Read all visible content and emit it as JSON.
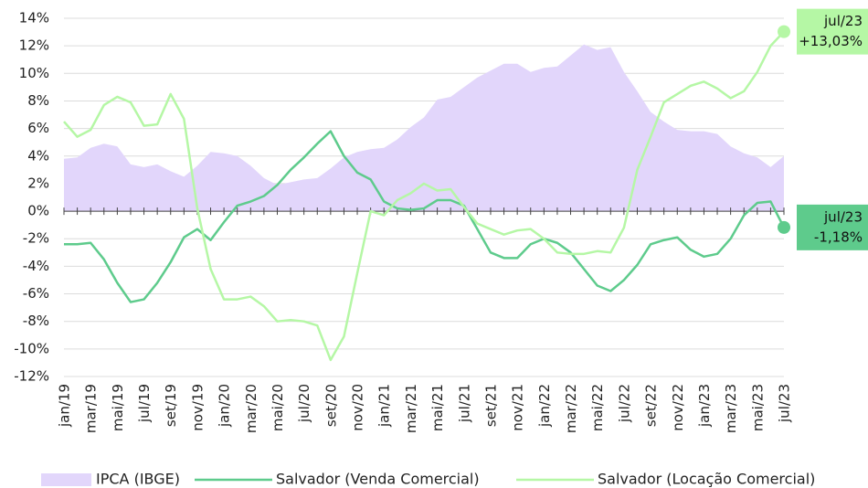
{
  "chart_data": {
    "type": "line",
    "categories": [
      "jan/19",
      null,
      "mar/19",
      null,
      "mai/19",
      null,
      "jul/19",
      null,
      "set/19",
      null,
      "nov/19",
      null,
      "jan/20",
      null,
      "mar/20",
      null,
      "mai/20",
      null,
      "jul/20",
      null,
      "set/20",
      null,
      "nov/20",
      null,
      "jan/21",
      null,
      "mar/21",
      null,
      "mai/21",
      null,
      "jul/21",
      null,
      "set/21",
      null,
      "nov/21",
      null,
      "jan/22",
      null,
      "mar/22",
      null,
      "mai/22",
      null,
      "jul/22",
      null,
      "set/22",
      null,
      "nov/22",
      null,
      "jan/23",
      null,
      "mar/23",
      null,
      "mai/23",
      null,
      "jul/23"
    ],
    "series": [
      {
        "name": "IPCA (IBGE)",
        "color": "#e2d6fb",
        "style": "area",
        "values": [
          3.8,
          3.9,
          4.6,
          4.9,
          4.7,
          3.4,
          3.2,
          3.4,
          2.9,
          2.5,
          3.3,
          4.3,
          4.2,
          4.0,
          3.3,
          2.4,
          1.9,
          2.1,
          2.3,
          2.4,
          3.1,
          3.9,
          4.3,
          4.5,
          4.6,
          5.2,
          6.1,
          6.8,
          8.1,
          8.3,
          9.0,
          9.7,
          10.2,
          10.7,
          10.7,
          10.1,
          10.4,
          10.5,
          11.3,
          12.1,
          11.7,
          11.9,
          10.1,
          8.7,
          7.2,
          6.5,
          5.9,
          5.8,
          5.8,
          5.6,
          4.7,
          4.2,
          3.9,
          3.2,
          4.0
        ]
      },
      {
        "name": "Salvador (Venda Comercial)",
        "color": "#5ecb8c",
        "style": "line",
        "end_label": [
          "jul/23",
          "-1,18%"
        ],
        "values": [
          -2.4,
          -2.4,
          -2.3,
          -3.5,
          -5.2,
          -6.6,
          -6.4,
          -5.2,
          -3.7,
          -1.9,
          -1.3,
          -2.1,
          -0.8,
          0.4,
          0.7,
          1.1,
          1.9,
          3.0,
          3.9,
          4.9,
          5.8,
          4.0,
          2.8,
          2.3,
          0.7,
          0.2,
          0.1,
          0.2,
          0.8,
          0.8,
          0.4,
          -1.3,
          -3.0,
          -3.4,
          -3.4,
          -2.4,
          -2.0,
          -2.3,
          -3.0,
          -4.2,
          -5.4,
          -5.8,
          -5.0,
          -3.9,
          -2.4,
          -2.1,
          -1.9,
          -2.8,
          -3.3,
          -3.1,
          -2.0,
          -0.3,
          0.6,
          0.7,
          -1.18
        ]
      },
      {
        "name": "Salvador (Locação Comercial)",
        "color": "#b5f7a5",
        "style": "line",
        "end_label": [
          "jul/23",
          "+13,03%"
        ],
        "values": [
          6.5,
          5.4,
          5.9,
          7.7,
          8.3,
          7.9,
          6.2,
          6.3,
          8.5,
          6.7,
          0.2,
          -4.2,
          -6.4,
          -6.4,
          -6.2,
          -6.9,
          -8.0,
          -7.9,
          -8.0,
          -8.3,
          -10.8,
          -9.1,
          -4.5,
          0.0,
          -0.3,
          0.8,
          1.3,
          2.0,
          1.5,
          1.6,
          0.3,
          -0.9,
          -1.3,
          -1.7,
          -1.4,
          -1.3,
          -2.0,
          -3.0,
          -3.1,
          -3.1,
          -2.9,
          -3.0,
          -1.2,
          3.0,
          5.4,
          7.9,
          8.5,
          9.1,
          9.4,
          8.9,
          8.2,
          8.7,
          10.1,
          12.0,
          13.03
        ]
      }
    ],
    "ylim": [
      -12,
      14
    ],
    "yticks": [
      {
        "value": -12,
        "label": "-12%"
      },
      {
        "value": -10,
        "label": "-10%"
      },
      {
        "value": -8,
        "label": "-8%"
      },
      {
        "value": -6,
        "label": "-6%"
      },
      {
        "value": -4,
        "label": "-4%"
      },
      {
        "value": -2,
        "label": "-2%"
      },
      {
        "value": 0,
        "label": "0%"
      },
      {
        "value": 2,
        "label": "2%"
      },
      {
        "value": 4,
        "label": "4%"
      },
      {
        "value": 6,
        "label": "6%"
      },
      {
        "value": 8,
        "label": "8%"
      },
      {
        "value": 10,
        "label": "10%"
      },
      {
        "value": 12,
        "label": "12%"
      },
      {
        "value": 14,
        "label": "14%"
      }
    ],
    "grid": true,
    "legend": "bottom"
  }
}
